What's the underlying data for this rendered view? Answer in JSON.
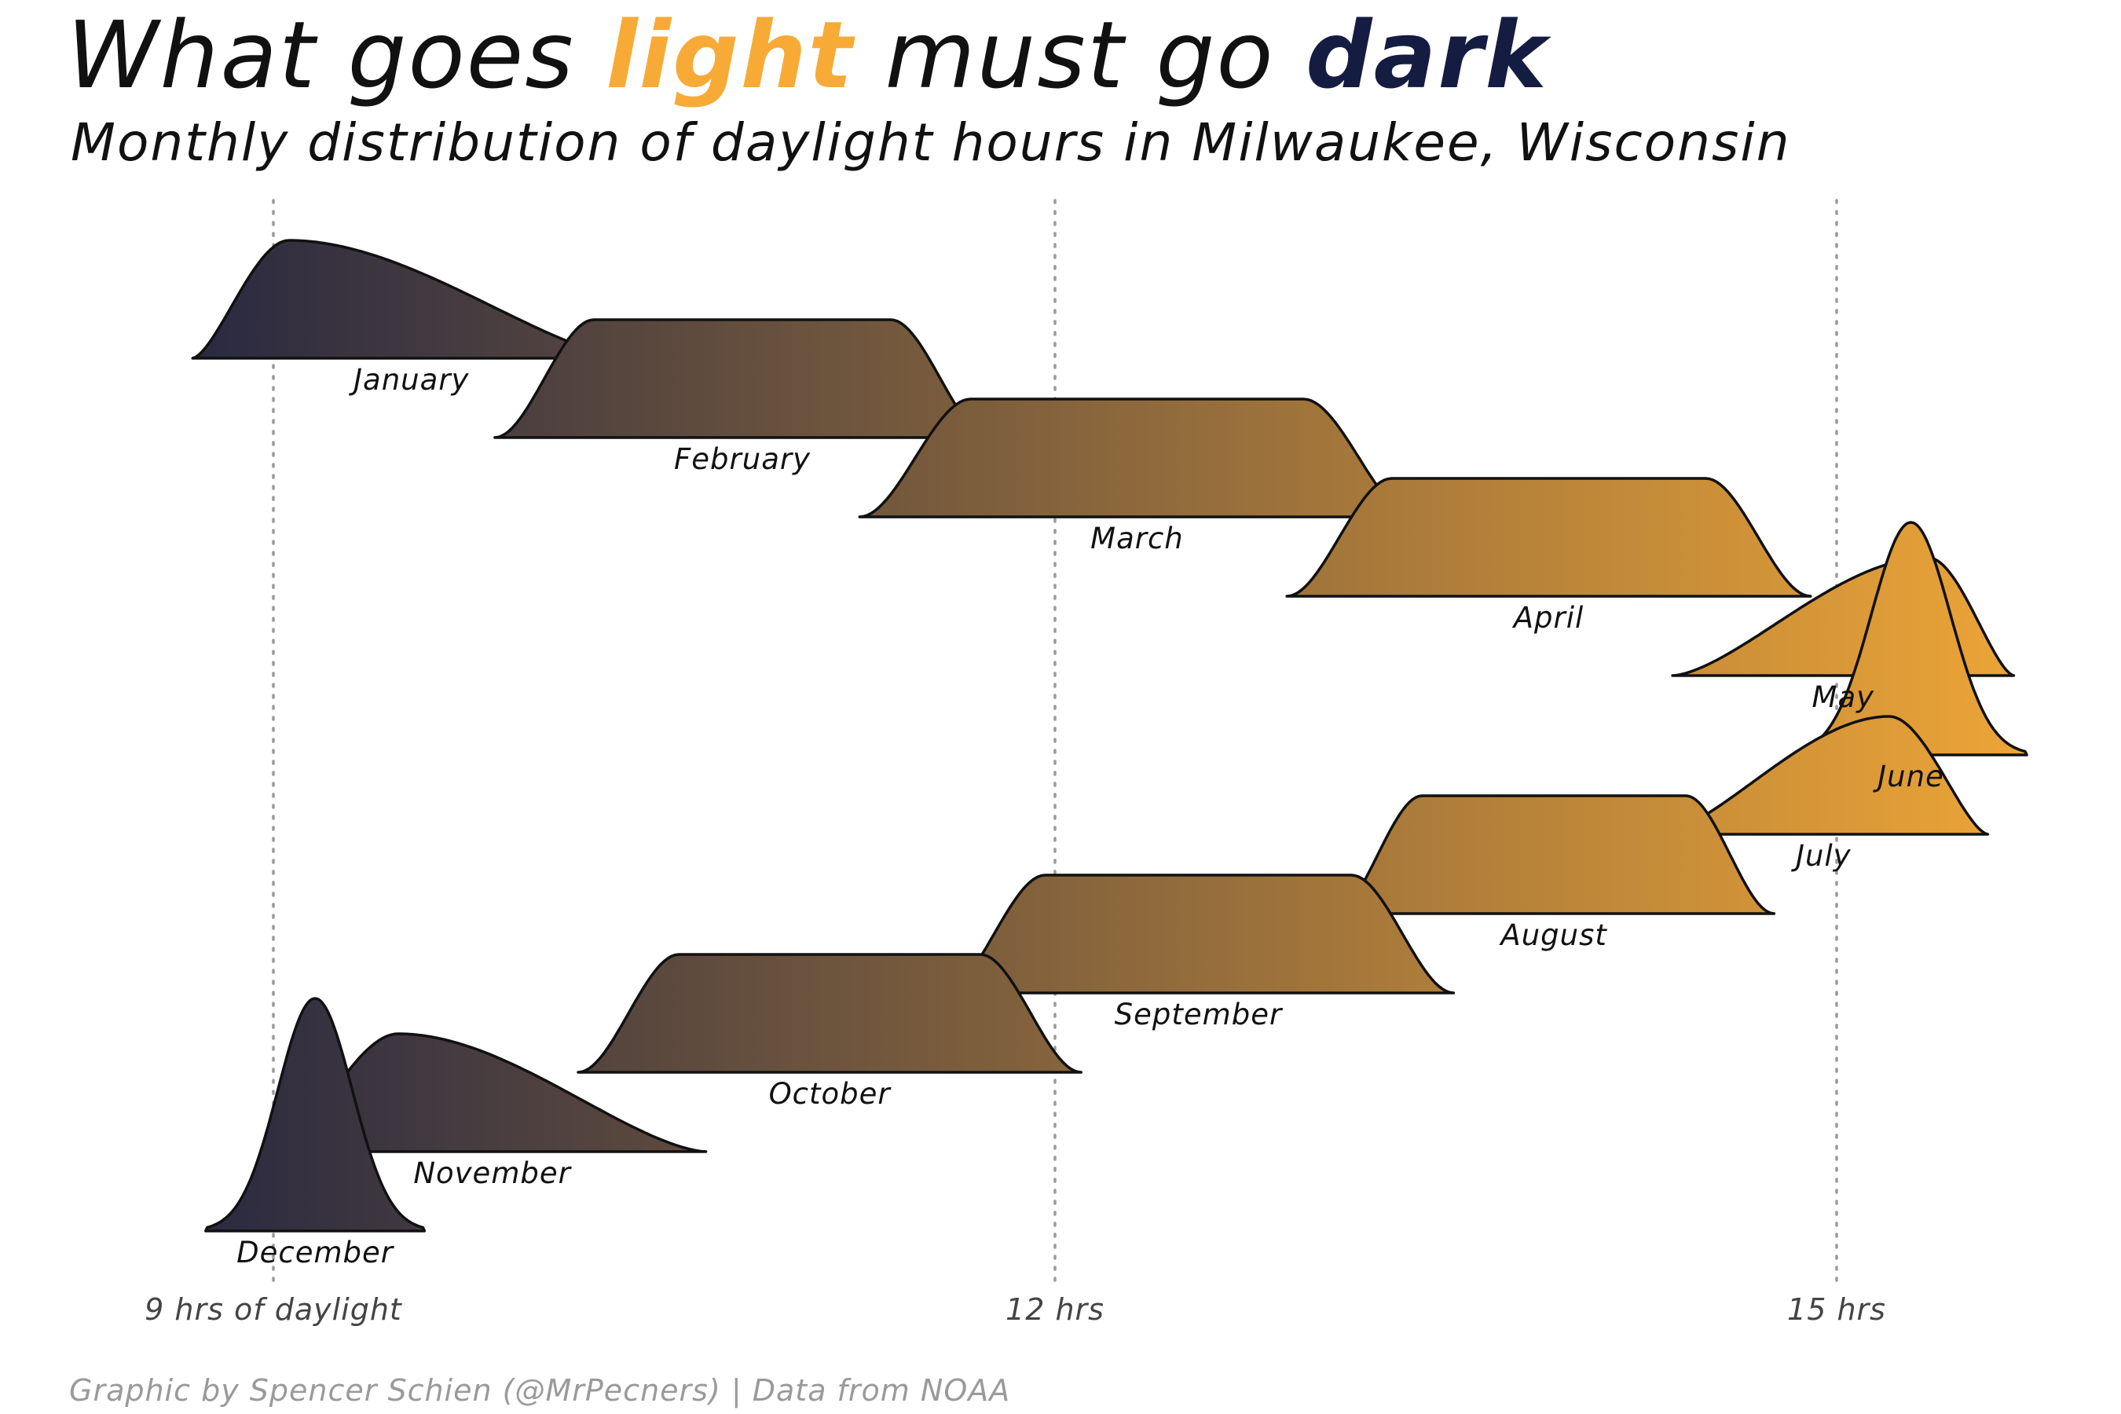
{
  "title": {
    "before": "What goes ",
    "light_word": "light",
    "middle": " must go ",
    "dark_word": "dark",
    "light_color": "#f7ab36",
    "dark_color": "#141c42"
  },
  "subtitle": "Monthly distribution of daylight hours in Milwaukee, Wisconsin",
  "caption": "Graphic by Spencer Schien (@MrPecners) | Data from NOAA",
  "chart_data": {
    "type": "ridgeline",
    "x_unit": "hours of daylight",
    "xlim": [
      8.25,
      15.75
    ],
    "tick_values": [
      9,
      12,
      15
    ],
    "tick_labels": [
      "9 hrs of daylight",
      "12 hrs",
      "15 hrs"
    ],
    "grid_vertical": true,
    "gradient_colors": [
      "#141c42",
      "#f7ab36"
    ],
    "series": [
      {
        "name": "January",
        "min": 8.97,
        "max": 10.09,
        "peak_rel": 0.22,
        "shape": "skew"
      },
      {
        "name": "February",
        "min": 10.13,
        "max": 11.47,
        "peak_rel": 0.45,
        "shape": "plateau"
      },
      {
        "name": "March",
        "min": 11.53,
        "max": 13.1,
        "peak_rel": 0.5,
        "shape": "plateau"
      },
      {
        "name": "April",
        "min": 13.17,
        "max": 14.62,
        "peak_rel": 0.55,
        "shape": "plateau"
      },
      {
        "name": "May",
        "min": 14.65,
        "max": 15.4,
        "peak_rel": 0.75,
        "shape": "skew"
      },
      {
        "name": "June",
        "min": 15.12,
        "max": 15.45,
        "peak_rel": 0.5,
        "shape": "peak"
      },
      {
        "name": "July",
        "min": 14.6,
        "max": 15.3,
        "peak_rel": 0.7,
        "shape": "skew"
      },
      {
        "name": "August",
        "min": 13.35,
        "max": 14.48,
        "peak_rel": 0.5,
        "shape": "plateau"
      },
      {
        "name": "September",
        "min": 11.85,
        "max": 13.25,
        "peak_rel": 0.5,
        "shape": "plateau"
      },
      {
        "name": "October",
        "min": 10.45,
        "max": 11.82,
        "peak_rel": 0.5,
        "shape": "plateau"
      },
      {
        "name": "November",
        "min": 9.3,
        "max": 10.38,
        "peak_rel": 0.28,
        "shape": "skew"
      },
      {
        "name": "December",
        "min": 9.02,
        "max": 9.3,
        "peak_rel": 0.5,
        "shape": "peak"
      }
    ]
  }
}
